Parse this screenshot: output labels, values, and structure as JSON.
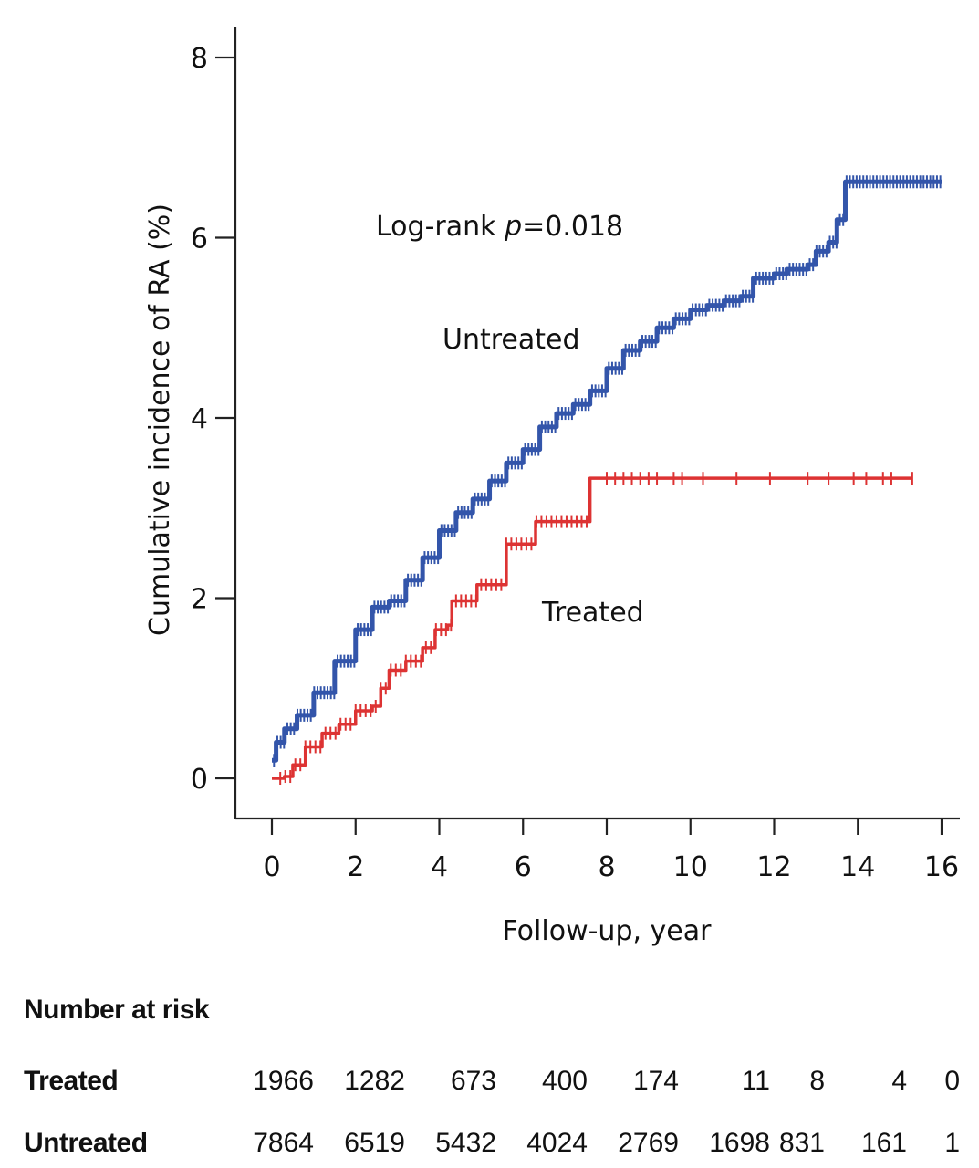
{
  "chart_data": {
    "type": "line",
    "step": true,
    "ylabel": "Cumulative incidence of RA (%)",
    "xlabel": "Follow-up, year",
    "xlim": [
      -1,
      16.4
    ],
    "ylim": [
      -0.4,
      8.3
    ],
    "xticks": [
      0,
      2,
      4,
      6,
      8,
      10,
      12,
      14,
      16
    ],
    "yticks": [
      0,
      2,
      4,
      6,
      8
    ],
    "annotations": {
      "logrank_prefix": "Log-rank ",
      "logrank_p": "p",
      "logrank_value": "=0.018"
    },
    "series": [
      {
        "name": "Untreated",
        "color": "#3355aa",
        "censor_marks": "dense",
        "points": [
          [
            0,
            0.2
          ],
          [
            0.1,
            0.4
          ],
          [
            0.3,
            0.55
          ],
          [
            0.6,
            0.7
          ],
          [
            1.0,
            0.95
          ],
          [
            1.5,
            1.3
          ],
          [
            2.0,
            1.65
          ],
          [
            2.4,
            1.9
          ],
          [
            2.8,
            1.97
          ],
          [
            3.2,
            2.2
          ],
          [
            3.6,
            2.45
          ],
          [
            4.0,
            2.75
          ],
          [
            4.4,
            2.95
          ],
          [
            4.8,
            3.1
          ],
          [
            5.2,
            3.3
          ],
          [
            5.6,
            3.5
          ],
          [
            6.0,
            3.65
          ],
          [
            6.4,
            3.9
          ],
          [
            6.8,
            4.05
          ],
          [
            7.2,
            4.15
          ],
          [
            7.6,
            4.3
          ],
          [
            8.0,
            4.55
          ],
          [
            8.4,
            4.75
          ],
          [
            8.8,
            4.85
          ],
          [
            9.2,
            5.0
          ],
          [
            9.6,
            5.1
          ],
          [
            10.0,
            5.2
          ],
          [
            10.4,
            5.25
          ],
          [
            10.8,
            5.3
          ],
          [
            11.2,
            5.35
          ],
          [
            11.5,
            5.55
          ],
          [
            12.0,
            5.6
          ],
          [
            12.3,
            5.65
          ],
          [
            12.8,
            5.7
          ],
          [
            13.0,
            5.85
          ],
          [
            13.3,
            5.95
          ],
          [
            13.5,
            6.2
          ],
          [
            13.7,
            6.62
          ],
          [
            14.5,
            6.62
          ],
          [
            15.0,
            6.62
          ],
          [
            16.0,
            6.62
          ]
        ]
      },
      {
        "name": "Treated",
        "color": "#dd3333",
        "censor_marks": "sparse",
        "points": [
          [
            0,
            0
          ],
          [
            0.3,
            0.02
          ],
          [
            0.5,
            0.15
          ],
          [
            0.8,
            0.35
          ],
          [
            1.2,
            0.5
          ],
          [
            1.6,
            0.6
          ],
          [
            2.0,
            0.75
          ],
          [
            2.4,
            0.8
          ],
          [
            2.6,
            1.0
          ],
          [
            2.8,
            1.2
          ],
          [
            3.2,
            1.3
          ],
          [
            3.6,
            1.45
          ],
          [
            3.9,
            1.65
          ],
          [
            4.2,
            1.7
          ],
          [
            4.3,
            1.97
          ],
          [
            4.9,
            2.15
          ],
          [
            5.6,
            2.6
          ],
          [
            6.3,
            2.85
          ],
          [
            7.6,
            3.33
          ],
          [
            9.2,
            3.33
          ],
          [
            10.0,
            3.33
          ],
          [
            12.0,
            3.33
          ],
          [
            14.0,
            3.33
          ],
          [
            15.3,
            3.33
          ]
        ]
      }
    ],
    "series_labels": {
      "untreated": "Untreated",
      "treated": "Treated"
    },
    "risk_table": {
      "title": "Number at risk",
      "timepoints": [
        0,
        2,
        4,
        6,
        8,
        10,
        12,
        14,
        16
      ],
      "rows": [
        {
          "label": "Treated",
          "values": [
            "1966",
            "1282",
            "673",
            "400",
            "174",
            "11",
            "8",
            "4",
            "0"
          ]
        },
        {
          "label": "Untreated",
          "values": [
            "7864",
            "6519",
            "5432",
            "4024",
            "2769",
            "1698",
            "831",
            "161",
            "1"
          ]
        }
      ]
    }
  }
}
